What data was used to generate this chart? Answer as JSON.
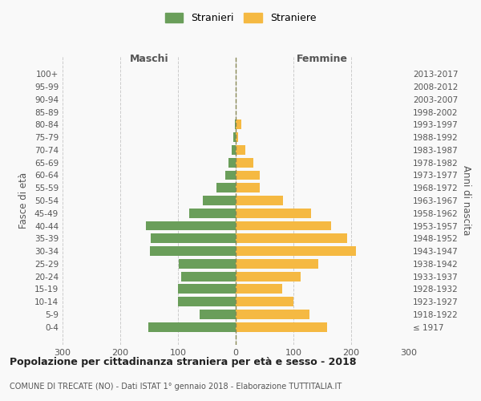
{
  "age_groups": [
    "100+",
    "95-99",
    "90-94",
    "85-89",
    "80-84",
    "75-79",
    "70-74",
    "65-69",
    "60-64",
    "55-59",
    "50-54",
    "45-49",
    "40-44",
    "35-39",
    "30-34",
    "25-29",
    "20-24",
    "15-19",
    "10-14",
    "5-9",
    "0-4"
  ],
  "birth_years": [
    "≤ 1917",
    "1918-1922",
    "1923-1927",
    "1928-1932",
    "1933-1937",
    "1938-1942",
    "1943-1947",
    "1948-1952",
    "1953-1957",
    "1958-1962",
    "1963-1967",
    "1968-1972",
    "1973-1977",
    "1978-1982",
    "1983-1987",
    "1988-1992",
    "1993-1997",
    "1998-2002",
    "2003-2007",
    "2008-2012",
    "2013-2017"
  ],
  "maschi": [
    0,
    0,
    0,
    0,
    2,
    4,
    7,
    13,
    18,
    33,
    57,
    80,
    155,
    147,
    148,
    98,
    95,
    100,
    100,
    62,
    152
  ],
  "femmine": [
    0,
    0,
    0,
    0,
    10,
    4,
    17,
    30,
    42,
    42,
    82,
    130,
    165,
    193,
    208,
    143,
    113,
    80,
    100,
    128,
    158
  ],
  "color_maschi": "#6a9e5a",
  "color_femmine": "#f5b942",
  "color_grid": "#cccccc",
  "color_center_line": "#888855",
  "xlim": 300,
  "title_main": "Popolazione per cittadinanza straniera per età e sesso - 2018",
  "title_sub": "COMUNE DI TRECATE (NO) - Dati ISTAT 1° gennaio 2018 - Elaborazione TUTTITALIA.IT",
  "label_maschi_header": "Maschi",
  "label_femmine_header": "Femmine",
  "ylabel_left": "Fasce di età",
  "ylabel_right": "Anni di nascita",
  "legend_stranieri": "Stranieri",
  "legend_straniere": "Straniere",
  "background_color": "#f9f9f9"
}
